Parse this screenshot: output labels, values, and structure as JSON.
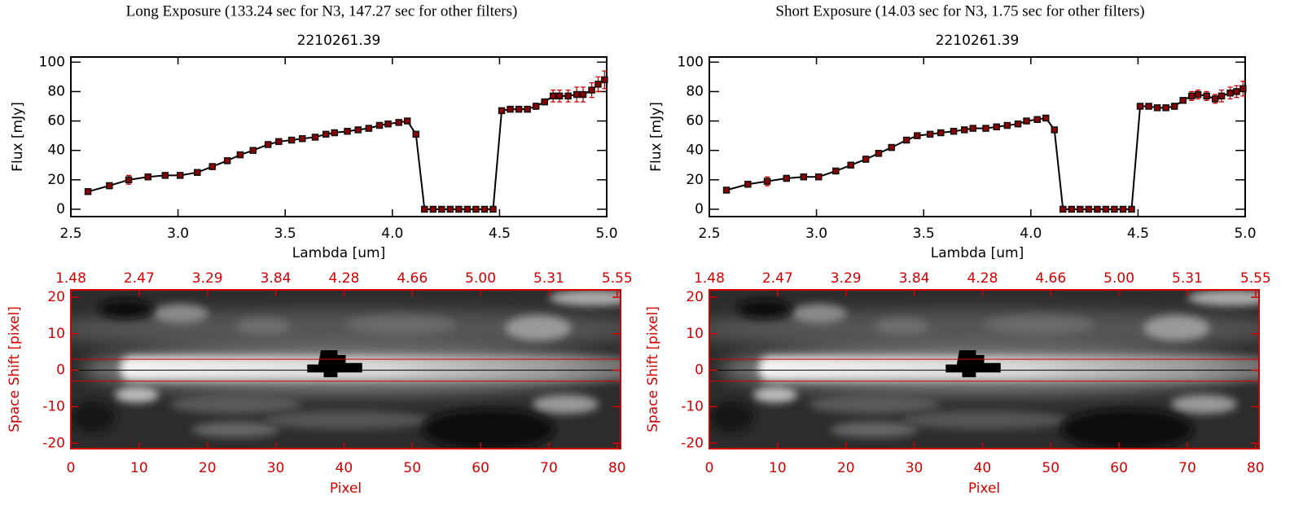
{
  "chart_data": [
    {
      "type": "line",
      "suptitle": "Long Exposure (133.24 sec for N3, 147.27 sec for other filters)",
      "title": "2210261.39",
      "xlabel": "Lambda [um]",
      "ylabel": "Flux [mJy]",
      "x": [
        2.58,
        2.68,
        2.77,
        2.86,
        2.94,
        3.01,
        3.09,
        3.16,
        3.23,
        3.29,
        3.35,
        3.42,
        3.47,
        3.53,
        3.58,
        3.64,
        3.69,
        3.73,
        3.79,
        3.84,
        3.89,
        3.94,
        3.98,
        4.03,
        4.07,
        4.11,
        4.15,
        4.19,
        4.23,
        4.27,
        4.31,
        4.35,
        4.39,
        4.43,
        4.47,
        4.51,
        4.55,
        4.59,
        4.63,
        4.67,
        4.71,
        4.75,
        4.78,
        4.82,
        4.86,
        4.89,
        4.93,
        4.96,
        4.99
      ],
      "values": [
        12,
        16,
        20,
        22,
        23,
        23,
        25,
        29,
        33,
        37,
        40,
        44,
        46,
        47,
        48,
        49,
        51,
        52,
        53,
        54,
        55,
        57,
        58,
        59,
        60,
        51,
        0,
        0,
        0,
        0,
        0,
        0,
        0,
        0,
        0,
        67,
        68,
        68,
        68,
        70,
        73,
        77,
        77,
        77,
        78,
        78,
        81,
        85,
        88
      ],
      "errors": [
        1,
        2,
        3,
        1,
        1,
        1,
        1,
        2,
        2,
        1,
        1,
        1,
        1,
        1,
        1,
        1,
        1,
        1,
        1,
        1,
        1,
        1,
        1,
        1,
        1,
        1,
        0,
        0,
        0,
        0,
        0,
        0,
        0,
        0,
        0,
        1,
        1,
        1,
        1,
        2,
        2,
        4,
        4,
        4,
        5,
        5,
        5,
        5,
        6
      ],
      "color": "#000000",
      "error_color": "#d40000",
      "marker_color": "#8b0000",
      "xlim": [
        2.5,
        5.0
      ],
      "ylim": [
        -5,
        103.5
      ],
      "xticks": [
        2.5,
        {
          "value": 3,
          "label": "3.0"
        },
        3.5,
        {
          "value": 4,
          "label": "4.0"
        },
        4.5,
        {
          "value": 5,
          "label": "5.0"
        }
      ],
      "yticks": [
        0,
        20,
        40,
        60,
        80,
        100
      ]
    },
    {
      "type": "image",
      "xlabel": "Pixel",
      "ylabel": "Space Shift [pixel]",
      "axis_color": "#d40000",
      "xlim": [
        0,
        80.5
      ],
      "ylim": [
        -21.5,
        22
      ],
      "xticks": [
        0,
        10,
        20,
        30,
        40,
        50,
        60,
        70,
        80
      ],
      "x2ticks": [
        {
          "value": 0,
          "label": "1.48"
        },
        {
          "value": 10,
          "label": "2.47"
        },
        {
          "value": 20,
          "label": "3.29"
        },
        {
          "value": 30,
          "label": "3.84"
        },
        {
          "value": 40,
          "label": "4.28"
        },
        {
          "value": 50,
          "label": "4.66"
        },
        {
          "value": 60,
          "label": "5.00"
        },
        {
          "value": 70,
          "label": "5.31"
        },
        {
          "value": 80,
          "label": "5.55"
        }
      ],
      "yticks": [
        -20,
        -10,
        0,
        10,
        20
      ],
      "aperture_lines": [
        -3,
        3
      ],
      "center_line": 0
    },
    {
      "type": "line",
      "suptitle": "Short Exposure (14.03 sec for N3, 1.75 sec for other filters)",
      "title": "2210261.39",
      "xlabel": "Lambda [um]",
      "ylabel": "Flux [mJy]",
      "x": [
        2.58,
        2.68,
        2.77,
        2.86,
        2.94,
        3.01,
        3.09,
        3.16,
        3.23,
        3.29,
        3.35,
        3.42,
        3.47,
        3.53,
        3.58,
        3.64,
        3.69,
        3.73,
        3.79,
        3.84,
        3.89,
        3.94,
        3.98,
        4.03,
        4.07,
        4.11,
        4.15,
        4.19,
        4.23,
        4.27,
        4.31,
        4.35,
        4.39,
        4.43,
        4.47,
        4.51,
        4.55,
        4.59,
        4.63,
        4.67,
        4.71,
        4.75,
        4.78,
        4.82,
        4.86,
        4.89,
        4.93,
        4.96,
        4.99
      ],
      "values": [
        13,
        17,
        19,
        21,
        22,
        22,
        26,
        30,
        34,
        38,
        42,
        47,
        50,
        51,
        52,
        53,
        54,
        55,
        55,
        56,
        57,
        58,
        60,
        61,
        62,
        54,
        0,
        0,
        0,
        0,
        0,
        0,
        0,
        0,
        0,
        70,
        70,
        69,
        69,
        70,
        74,
        77,
        78,
        77,
        75,
        77,
        79,
        80,
        82
      ],
      "errors": [
        1,
        2,
        3,
        2,
        1,
        1,
        1,
        2,
        2,
        2,
        2,
        1,
        1,
        1,
        1,
        1,
        1,
        1,
        1,
        1,
        1,
        1,
        1,
        1,
        1,
        1,
        0,
        0,
        0,
        0,
        0,
        0,
        0,
        0,
        0,
        1,
        1,
        1,
        1,
        2,
        2,
        3,
        3,
        3,
        3,
        4,
        4,
        4,
        5
      ],
      "color": "#000000",
      "error_color": "#d40000",
      "marker_color": "#8b0000",
      "xlim": [
        2.5,
        5.0
      ],
      "ylim": [
        -5,
        103.5
      ],
      "xticks": [
        2.5,
        {
          "value": 3,
          "label": "3.0"
        },
        3.5,
        {
          "value": 4,
          "label": "4.0"
        },
        4.5,
        {
          "value": 5,
          "label": "5.0"
        }
      ],
      "yticks": [
        0,
        20,
        40,
        60,
        80,
        100
      ]
    },
    {
      "type": "image",
      "xlabel": "Pixel",
      "ylabel": "Space Shift [pixel]",
      "axis_color": "#d40000",
      "xlim": [
        0,
        80.5
      ],
      "ylim": [
        -21.5,
        22
      ],
      "xticks": [
        0,
        10,
        20,
        30,
        40,
        50,
        60,
        70,
        80
      ],
      "x2ticks": [
        {
          "value": 0,
          "label": "1.48"
        },
        {
          "value": 10,
          "label": "2.47"
        },
        {
          "value": 20,
          "label": "3.29"
        },
        {
          "value": 30,
          "label": "3.84"
        },
        {
          "value": 40,
          "label": "4.28"
        },
        {
          "value": 50,
          "label": "4.66"
        },
        {
          "value": 60,
          "label": "5.00"
        },
        {
          "value": 70,
          "label": "5.31"
        },
        {
          "value": 80,
          "label": "5.55"
        }
      ],
      "yticks": [
        -20,
        -10,
        0,
        10,
        20
      ],
      "aperture_lines": [
        -3,
        3
      ],
      "center_line": 0
    }
  ]
}
